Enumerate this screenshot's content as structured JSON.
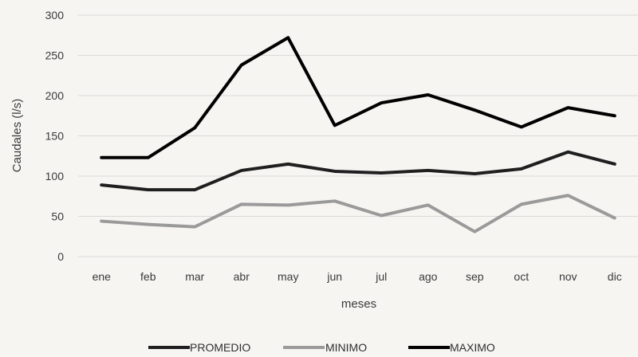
{
  "chart_data": {
    "type": "line",
    "categories": [
      "ene",
      "feb",
      "mar",
      "abr",
      "may",
      "jun",
      "jul",
      "ago",
      "sep",
      "oct",
      "nov",
      "dic"
    ],
    "series": [
      {
        "name": "PROMEDIO",
        "color": "#1f1f1f",
        "values": [
          89,
          83,
          83,
          107,
          115,
          106,
          104,
          107,
          103,
          109,
          130,
          115
        ]
      },
      {
        "name": "MINIMO",
        "color": "#9a9a9a",
        "values": [
          44,
          40,
          37,
          65,
          64,
          69,
          51,
          64,
          31,
          65,
          76,
          48
        ]
      },
      {
        "name": "MAXIMO",
        "color": "#000000",
        "values": [
          123,
          123,
          160,
          238,
          272,
          163,
          191,
          201,
          182,
          161,
          185,
          175
        ]
      }
    ],
    "xlabel": "meses",
    "ylabel": "Caudales (l/s)",
    "ylim": [
      0,
      300
    ],
    "yticks": [
      0,
      50,
      100,
      150,
      200,
      250,
      300
    ],
    "grid": true,
    "legend_position": "bottom"
  }
}
